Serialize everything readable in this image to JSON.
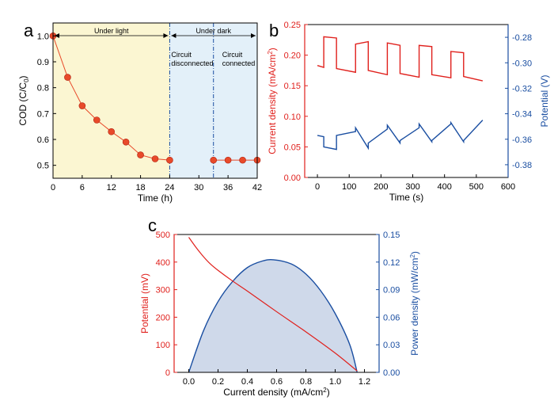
{
  "colors": {
    "red": "#e0201c",
    "blue": "#1a4ea1",
    "marker": "#e84a2a",
    "light_region": "#fbf6d2",
    "dark_region": "#e3f0f9",
    "divider": "#1a4ea1",
    "power_fill": "#cfd9ea"
  },
  "chart_data": [
    {
      "panel": "a",
      "type": "line",
      "xlabel": "Time (h)",
      "ylabel_main": "COD (C/C",
      "ylabel_sub": "0",
      "ylabel_end": ")",
      "xlim": [
        0,
        42
      ],
      "ylim": [
        0.45,
        1.05
      ],
      "xticks": [
        0,
        6,
        12,
        18,
        24,
        30,
        36,
        42
      ],
      "yticks": [
        0.5,
        0.6,
        0.7,
        0.8,
        0.9,
        1.0
      ],
      "ytick_labels": [
        "0.5",
        "0.6",
        "0.7",
        "0.8",
        "0.9",
        "1.0"
      ],
      "regions": {
        "light_label": "Under light",
        "dark_label": "Under dark",
        "boundary": 24,
        "circuit_switch": 33
      },
      "annotations": [
        {
          "lines": [
            "Circuit",
            "disconnected"
          ]
        },
        {
          "lines": [
            "Circuit",
            "connected"
          ]
        }
      ],
      "series": [
        {
          "name": "segment 1",
          "x": [
            0,
            3,
            6,
            9,
            12,
            15,
            18,
            21,
            24
          ],
          "y": [
            1.0,
            0.84,
            0.73,
            0.675,
            0.63,
            0.59,
            0.54,
            0.525,
            0.52
          ]
        },
        {
          "name": "segment 2",
          "x": [
            33,
            36,
            39,
            42
          ],
          "y": [
            0.52,
            0.52,
            0.52,
            0.52
          ]
        }
      ]
    },
    {
      "panel": "b",
      "type": "line",
      "xlabel": "Time (s)",
      "ylabel": "Current density (mA/cm",
      "ylabel_sup": "2",
      "ylabel_end": ")",
      "y2label": "Potential (V)",
      "xlim": [
        -40,
        600
      ],
      "ylim": [
        0,
        0.25
      ],
      "y2lim": [
        -0.39,
        -0.27
      ],
      "xticks": [
        0,
        100,
        200,
        300,
        400,
        500,
        600
      ],
      "yticks": [
        0.0,
        0.05,
        0.1,
        0.15,
        0.2,
        0.25
      ],
      "ytick_labels": [
        "0.00",
        "0.05",
        "0.10",
        "0.15",
        "0.20",
        "0.25"
      ],
      "y2ticks": [
        -0.38,
        -0.36,
        -0.34,
        -0.32,
        -0.3,
        -0.28
      ],
      "y2tick_labels": [
        "-0.38",
        "-0.36",
        "-0.34",
        "-0.32",
        "-0.30",
        "-0.28"
      ],
      "series": [
        {
          "name": "Current density",
          "axis": "left",
          "x": [
            0,
            20,
            20,
            60,
            60,
            120,
            120,
            160,
            160,
            220,
            220,
            260,
            260,
            320,
            320,
            360,
            360,
            420,
            420,
            460,
            460,
            520
          ],
          "y": [
            0.183,
            0.18,
            0.23,
            0.228,
            0.178,
            0.172,
            0.218,
            0.222,
            0.175,
            0.168,
            0.22,
            0.216,
            0.17,
            0.164,
            0.216,
            0.214,
            0.168,
            0.163,
            0.206,
            0.204,
            0.165,
            0.158
          ]
        },
        {
          "name": "Potential",
          "axis": "right",
          "x": [
            0,
            20,
            20,
            60,
            60,
            120,
            120,
            160,
            160,
            220,
            220,
            260,
            260,
            320,
            320,
            360,
            360,
            420,
            420,
            460,
            460,
            520
          ],
          "y": [
            -0.357,
            -0.358,
            -0.366,
            -0.368,
            -0.357,
            -0.354,
            -0.351,
            -0.367,
            -0.363,
            -0.352,
            -0.349,
            -0.363,
            -0.361,
            -0.351,
            -0.348,
            -0.362,
            -0.361,
            -0.348,
            -0.347,
            -0.362,
            -0.361,
            -0.345
          ]
        }
      ]
    },
    {
      "panel": "c",
      "type": "area",
      "xlabel": "Current density (mA/cm",
      "xlabel_sup": "2",
      "xlabel_end": ")",
      "ylabel": "Potential (mV)",
      "y2label": "Power density (mW/cm",
      "y2label_sup": "2",
      "y2label_end": ")",
      "xlim": [
        -0.1,
        1.3
      ],
      "ylim": [
        0,
        500
      ],
      "y2lim": [
        0,
        0.15
      ],
      "xticks": [
        0.0,
        0.2,
        0.4,
        0.6,
        0.8,
        1.0,
        1.2
      ],
      "xtick_labels": [
        "0.0",
        "0.2",
        "0.4",
        "0.6",
        "0.8",
        "1.0",
        "1.2"
      ],
      "yticks": [
        0,
        100,
        200,
        300,
        400,
        500
      ],
      "ytick_labels": [
        "0",
        "100",
        "200",
        "300",
        "400",
        "500"
      ],
      "y2ticks": [
        0,
        0.03,
        0.06,
        0.09,
        0.12,
        0.15
      ],
      "y2tick_labels": [
        "0.00",
        "0.03",
        "0.06",
        "0.09",
        "0.12",
        "0.15"
      ],
      "series": [
        {
          "name": "Potential",
          "axis": "left",
          "x": [
            0.0,
            0.05,
            0.1,
            0.15,
            0.2,
            0.3,
            0.4,
            0.6,
            0.8,
            1.0,
            1.15
          ],
          "y": [
            490,
            453,
            420,
            392,
            370,
            331,
            295,
            220,
            147,
            70,
            5
          ]
        },
        {
          "name": "Power density",
          "axis": "right",
          "x": [
            0.0,
            0.1,
            0.2,
            0.3,
            0.4,
            0.5,
            0.58,
            0.7,
            0.8,
            0.9,
            1.0,
            1.1,
            1.15
          ],
          "y": [
            0.0,
            0.045,
            0.077,
            0.099,
            0.114,
            0.121,
            0.1225,
            0.118,
            0.107,
            0.089,
            0.064,
            0.03,
            0.0
          ]
        }
      ]
    }
  ],
  "panel_labels": [
    "a",
    "b",
    "c"
  ]
}
